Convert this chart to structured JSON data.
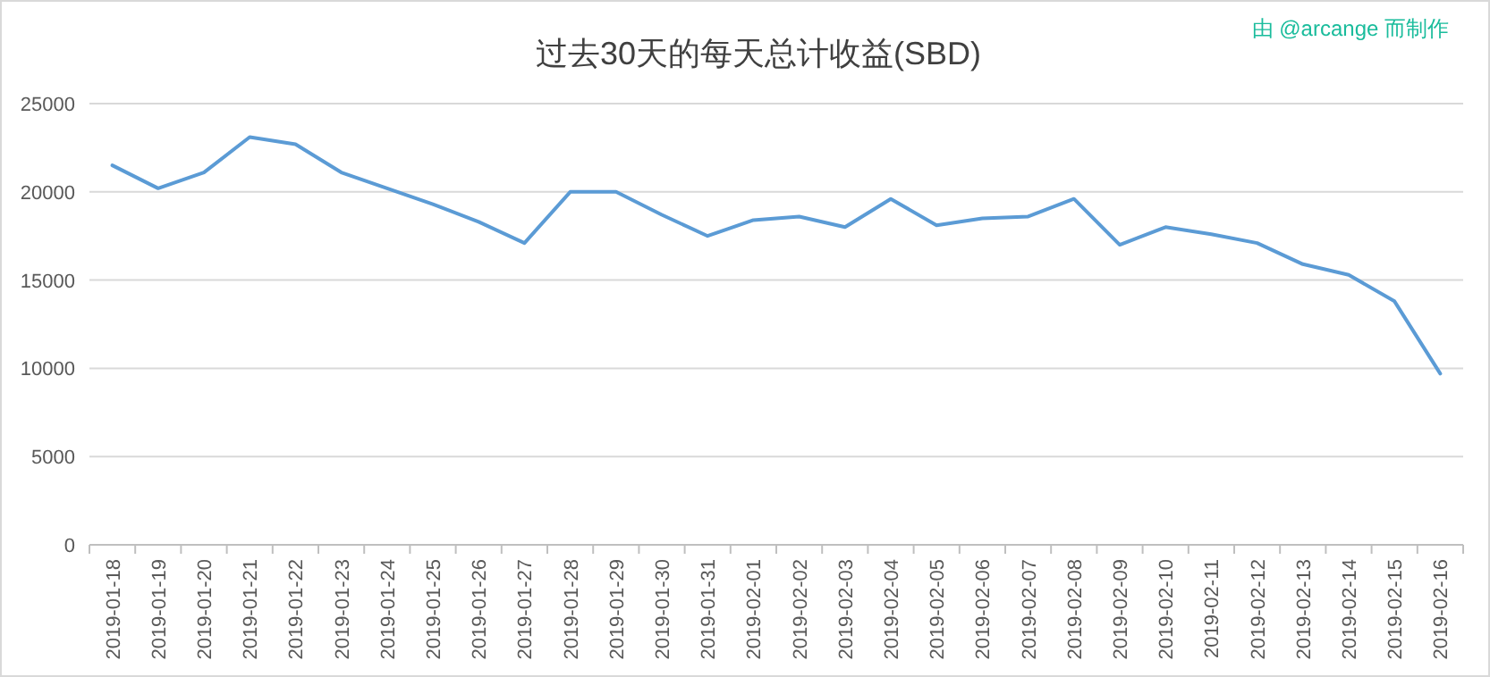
{
  "chart_data": {
    "type": "line",
    "title": "过去30天的每天总计收益(SBD)",
    "annotations": [
      "由 @arcange 而制作"
    ],
    "categories": [
      "2019-01-18",
      "2019-01-19",
      "2019-01-20",
      "2019-01-21",
      "2019-01-22",
      "2019-01-23",
      "2019-01-24",
      "2019-01-25",
      "2019-01-26",
      "2019-01-27",
      "2019-01-28",
      "2019-01-29",
      "2019-01-30",
      "2019-01-31",
      "2019-02-01",
      "2019-02-02",
      "2019-02-03",
      "2019-02-04",
      "2019-02-05",
      "2019-02-06",
      "2019-02-07",
      "2019-02-08",
      "2019-02-09",
      "2019-02-10",
      "2019-02-11",
      "2019-02-12",
      "2019-02-13",
      "2019-02-14",
      "2019-02-15",
      "2019-02-16"
    ],
    "series": [
      {
        "color": "#5b9bd5",
        "values": [
          21500,
          20200,
          21100,
          23100,
          22700,
          21100,
          20200,
          19300,
          18300,
          17100,
          20000,
          20000,
          18700,
          17500,
          18400,
          18600,
          18000,
          19600,
          18100,
          18500,
          18600,
          19600,
          17000,
          18000,
          17600,
          17100,
          15900,
          15300,
          13800,
          9700
        ]
      }
    ],
    "ylim": [
      0,
      25000
    ],
    "yticks": [
      0,
      5000,
      10000,
      15000,
      20000,
      25000
    ],
    "grid": "y"
  }
}
